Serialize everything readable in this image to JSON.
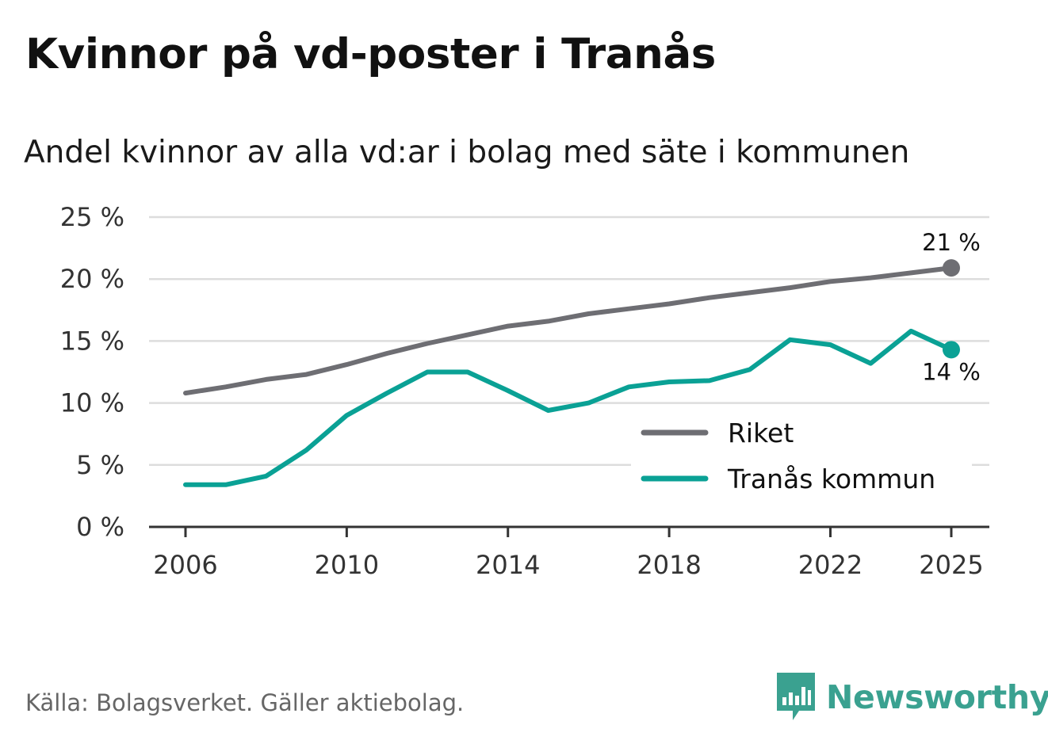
{
  "title": "Kvinnor på vd-poster i Tranås",
  "subtitle": "Andel kvinnor av alla vd:ar i bolag med säte i kommunen",
  "source": "Källa: Bolagsverket. Gäller aktiebolag.",
  "brand": {
    "name": "Newsworthy",
    "color": "#3aa190",
    "icon": "bar-chart-speech-bubble-icon"
  },
  "colors": {
    "riket": "#6e6e73",
    "tranas": "#0aa195",
    "grid": "#dddddd",
    "axis": "#333333"
  },
  "chart_data": {
    "type": "line",
    "title": "Kvinnor på vd-poster i Tranås",
    "subtitle": "Andel kvinnor av alla vd:ar i bolag med säte i kommunen",
    "xlabel": "",
    "ylabel": "",
    "xlim": [
      2006,
      2025
    ],
    "ylim": [
      0,
      25
    ],
    "grid": true,
    "legend_position": "bottom-right",
    "x_ticks": [
      2006,
      2010,
      2014,
      2018,
      2022,
      2025
    ],
    "x_tick_labels": [
      "2006",
      "2010",
      "2014",
      "2018",
      "2022",
      "2025"
    ],
    "y_ticks": [
      0,
      5,
      10,
      15,
      20,
      25
    ],
    "y_tick_labels": [
      "0 %",
      "5 %",
      "10 %",
      "15 %",
      "20 %",
      "25 %"
    ],
    "x": [
      2006,
      2007,
      2008,
      2009,
      2010,
      2011,
      2012,
      2013,
      2014,
      2015,
      2016,
      2017,
      2018,
      2019,
      2020,
      2021,
      2022,
      2023,
      2024,
      2025
    ],
    "series": [
      {
        "name": "Riket",
        "color": "#6e6e73",
        "values": [
          10.8,
          11.3,
          11.9,
          12.3,
          13.1,
          14.0,
          14.8,
          15.5,
          16.2,
          16.6,
          17.2,
          17.6,
          18.0,
          18.5,
          18.9,
          19.3,
          19.8,
          20.1,
          20.5,
          20.9
        ],
        "end_label": "21 %"
      },
      {
        "name": "Tranås kommun",
        "color": "#0aa195",
        "values": [
          3.4,
          3.4,
          4.1,
          6.2,
          9.0,
          10.8,
          12.5,
          12.5,
          11.0,
          9.4,
          10.0,
          11.3,
          11.7,
          11.8,
          12.7,
          15.1,
          14.7,
          13.2,
          15.8,
          14.3
        ],
        "end_label": "14 %"
      }
    ]
  }
}
